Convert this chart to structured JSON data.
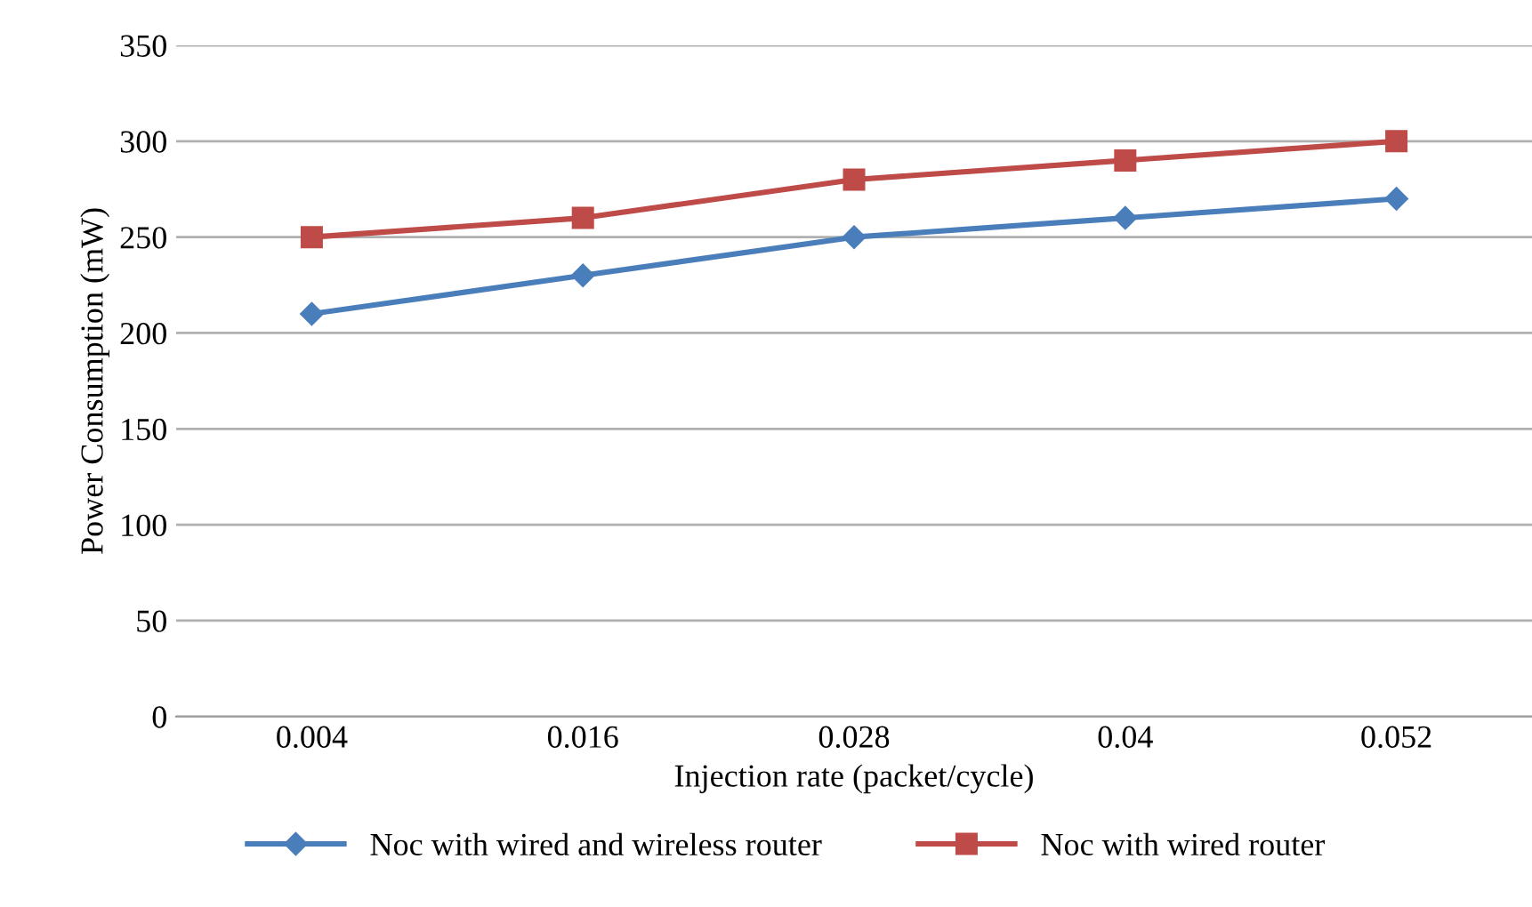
{
  "chart_data": {
    "type": "line",
    "xlabel": "Injection rate (packet/cycle)",
    "ylabel": "Power Consumption (mW)",
    "categories": [
      "0.004",
      "0.016",
      "0.028",
      "0.04",
      "0.052"
    ],
    "series": [
      {
        "name": "Noc with wired and wireless router",
        "color": "#4a7ebb",
        "values": [
          210,
          230,
          250,
          260,
          270
        ],
        "marker": "diamond"
      },
      {
        "name": "Noc with wired router",
        "color": "#be4b48",
        "values": [
          250,
          260,
          280,
          290,
          300
        ],
        "marker": "square"
      }
    ],
    "ylim": [
      0,
      350
    ],
    "yticks": [
      0,
      50,
      100,
      150,
      200,
      250,
      300,
      350
    ],
    "grid": "y",
    "legend": "bottom",
    "line_style": "solid"
  }
}
